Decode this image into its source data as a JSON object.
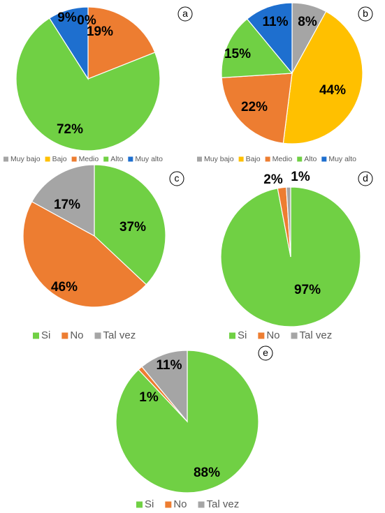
{
  "chart_data": [
    {
      "type": "pie",
      "panel_label": "a",
      "categories": [
        "Muy bajo",
        "Bajo",
        "Medio",
        "Alto",
        "Muy alto"
      ],
      "values": [
        0,
        0,
        19,
        72,
        9
      ],
      "labels": [
        "",
        "",
        "19%",
        "72%",
        "9%"
      ],
      "extra_labels": [
        "0%"
      ],
      "colors": [
        "#a5a5a5",
        "#ffc000",
        "#ed7d31",
        "#70d044",
        "#1e6fcf"
      ],
      "legend": [
        "Muy bajo",
        "Bajo",
        "Medio",
        "Alto",
        "Muy alto"
      ],
      "legend_position": "bottom"
    },
    {
      "type": "pie",
      "panel_label": "b",
      "categories": [
        "Muy bajo",
        "Bajo",
        "Medio",
        "Alto",
        "Muy alto"
      ],
      "values": [
        8,
        44,
        22,
        15,
        11
      ],
      "labels": [
        "8%",
        "44%",
        "22%",
        "15%",
        "11%"
      ],
      "colors": [
        "#a5a5a5",
        "#ffc000",
        "#ed7d31",
        "#70d044",
        "#1e6fcf"
      ],
      "legend": [
        "Muy bajo",
        "Bajo",
        "Medio",
        "Alto",
        "Muy alto"
      ],
      "legend_position": "bottom"
    },
    {
      "type": "pie",
      "panel_label": "c",
      "categories": [
        "Si",
        "No",
        "Tal vez"
      ],
      "values": [
        37,
        46,
        17
      ],
      "labels": [
        "37%",
        "46%",
        "17%"
      ],
      "colors": [
        "#70d044",
        "#ed7d31",
        "#a5a5a5"
      ],
      "legend": [
        "Si",
        "No",
        "Tal vez"
      ],
      "legend_position": "bottom"
    },
    {
      "type": "pie",
      "panel_label": "d",
      "categories": [
        "Si",
        "No",
        "Tal vez"
      ],
      "values": [
        97,
        2,
        1
      ],
      "labels": [
        "97%",
        "2%",
        "1%"
      ],
      "colors": [
        "#70d044",
        "#ed7d31",
        "#a5a5a5"
      ],
      "legend": [
        "Si",
        "No",
        "Tal vez"
      ],
      "legend_position": "bottom"
    },
    {
      "type": "pie",
      "panel_label": "e",
      "categories": [
        "Si",
        "No",
        "Tal vez"
      ],
      "values": [
        88,
        1,
        11
      ],
      "labels": [
        "88%",
        "1%",
        "11%"
      ],
      "colors": [
        "#70d044",
        "#ed7d31",
        "#a5a5a5"
      ],
      "legend": [
        "Si",
        "No",
        "Tal vez"
      ],
      "legend_position": "bottom"
    }
  ]
}
